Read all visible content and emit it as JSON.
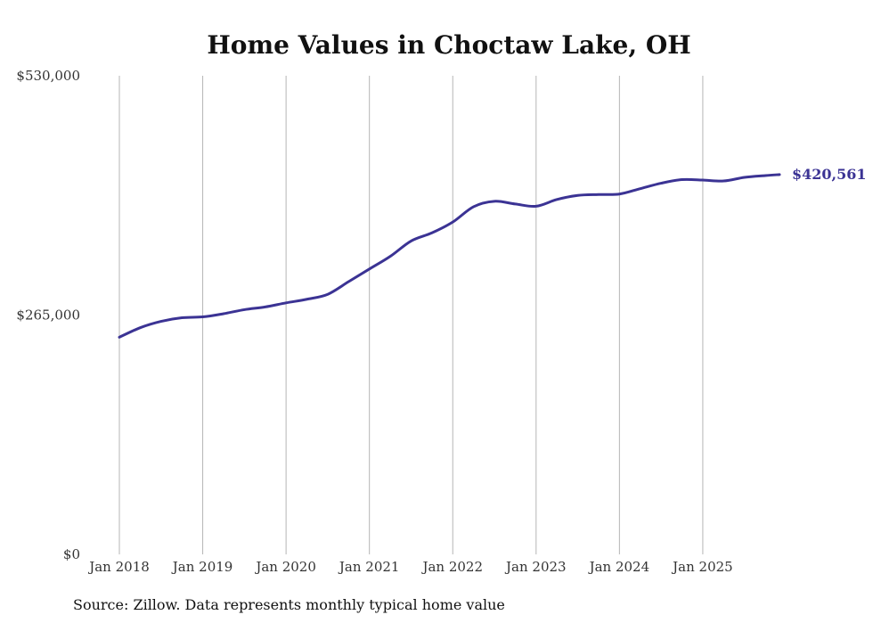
{
  "chart_data": {
    "type": "line",
    "title": "Home Values in Choctaw Lake, OH",
    "source_note": "Source: Zillow. Data represents monthly typical home value",
    "xlabel": "",
    "ylabel": "",
    "ylim": [
      0,
      530000
    ],
    "y_ticks": [
      {
        "value": 0,
        "label": "$0"
      },
      {
        "value": 265000,
        "label": "$265,000"
      },
      {
        "value": 530000,
        "label": "$530,000"
      }
    ],
    "x_range": [
      2018.0,
      2025.92
    ],
    "x_ticks": [
      {
        "value": 2018,
        "label": "Jan 2018"
      },
      {
        "value": 2019,
        "label": "Jan 2019"
      },
      {
        "value": 2020,
        "label": "Jan 2020"
      },
      {
        "value": 2021,
        "label": "Jan 2021"
      },
      {
        "value": 2022,
        "label": "Jan 2022"
      },
      {
        "value": 2023,
        "label": "Jan 2023"
      },
      {
        "value": 2024,
        "label": "Jan 2024"
      },
      {
        "value": 2025,
        "label": "Jan 2025"
      }
    ],
    "grid": "vertical",
    "series": [
      {
        "name": "Typical home value",
        "color": "#3b3394",
        "end_label": "$420,561",
        "points": [
          {
            "x": 2018.0,
            "y": 240500
          },
          {
            "x": 2018.25,
            "y": 251000
          },
          {
            "x": 2018.5,
            "y": 258000
          },
          {
            "x": 2018.75,
            "y": 262000
          },
          {
            "x": 2019.0,
            "y": 263000
          },
          {
            "x": 2019.25,
            "y": 266500
          },
          {
            "x": 2019.5,
            "y": 271000
          },
          {
            "x": 2019.75,
            "y": 274000
          },
          {
            "x": 2020.0,
            "y": 278500
          },
          {
            "x": 2020.25,
            "y": 282500
          },
          {
            "x": 2020.5,
            "y": 288000
          },
          {
            "x": 2020.75,
            "y": 302000
          },
          {
            "x": 2021.0,
            "y": 316000
          },
          {
            "x": 2021.25,
            "y": 330000
          },
          {
            "x": 2021.5,
            "y": 347000
          },
          {
            "x": 2021.75,
            "y": 356000
          },
          {
            "x": 2022.0,
            "y": 368000
          },
          {
            "x": 2022.25,
            "y": 385000
          },
          {
            "x": 2022.5,
            "y": 391000
          },
          {
            "x": 2022.75,
            "y": 388000
          },
          {
            "x": 2023.0,
            "y": 385500
          },
          {
            "x": 2023.25,
            "y": 393000
          },
          {
            "x": 2023.5,
            "y": 397500
          },
          {
            "x": 2023.75,
            "y": 398500
          },
          {
            "x": 2024.0,
            "y": 399000
          },
          {
            "x": 2024.25,
            "y": 405000
          },
          {
            "x": 2024.5,
            "y": 411000
          },
          {
            "x": 2024.75,
            "y": 415000
          },
          {
            "x": 2025.0,
            "y": 414500
          },
          {
            "x": 2025.25,
            "y": 413500
          },
          {
            "x": 2025.5,
            "y": 417500
          },
          {
            "x": 2025.75,
            "y": 419500
          },
          {
            "x": 2025.92,
            "y": 420561
          }
        ]
      }
    ]
  }
}
